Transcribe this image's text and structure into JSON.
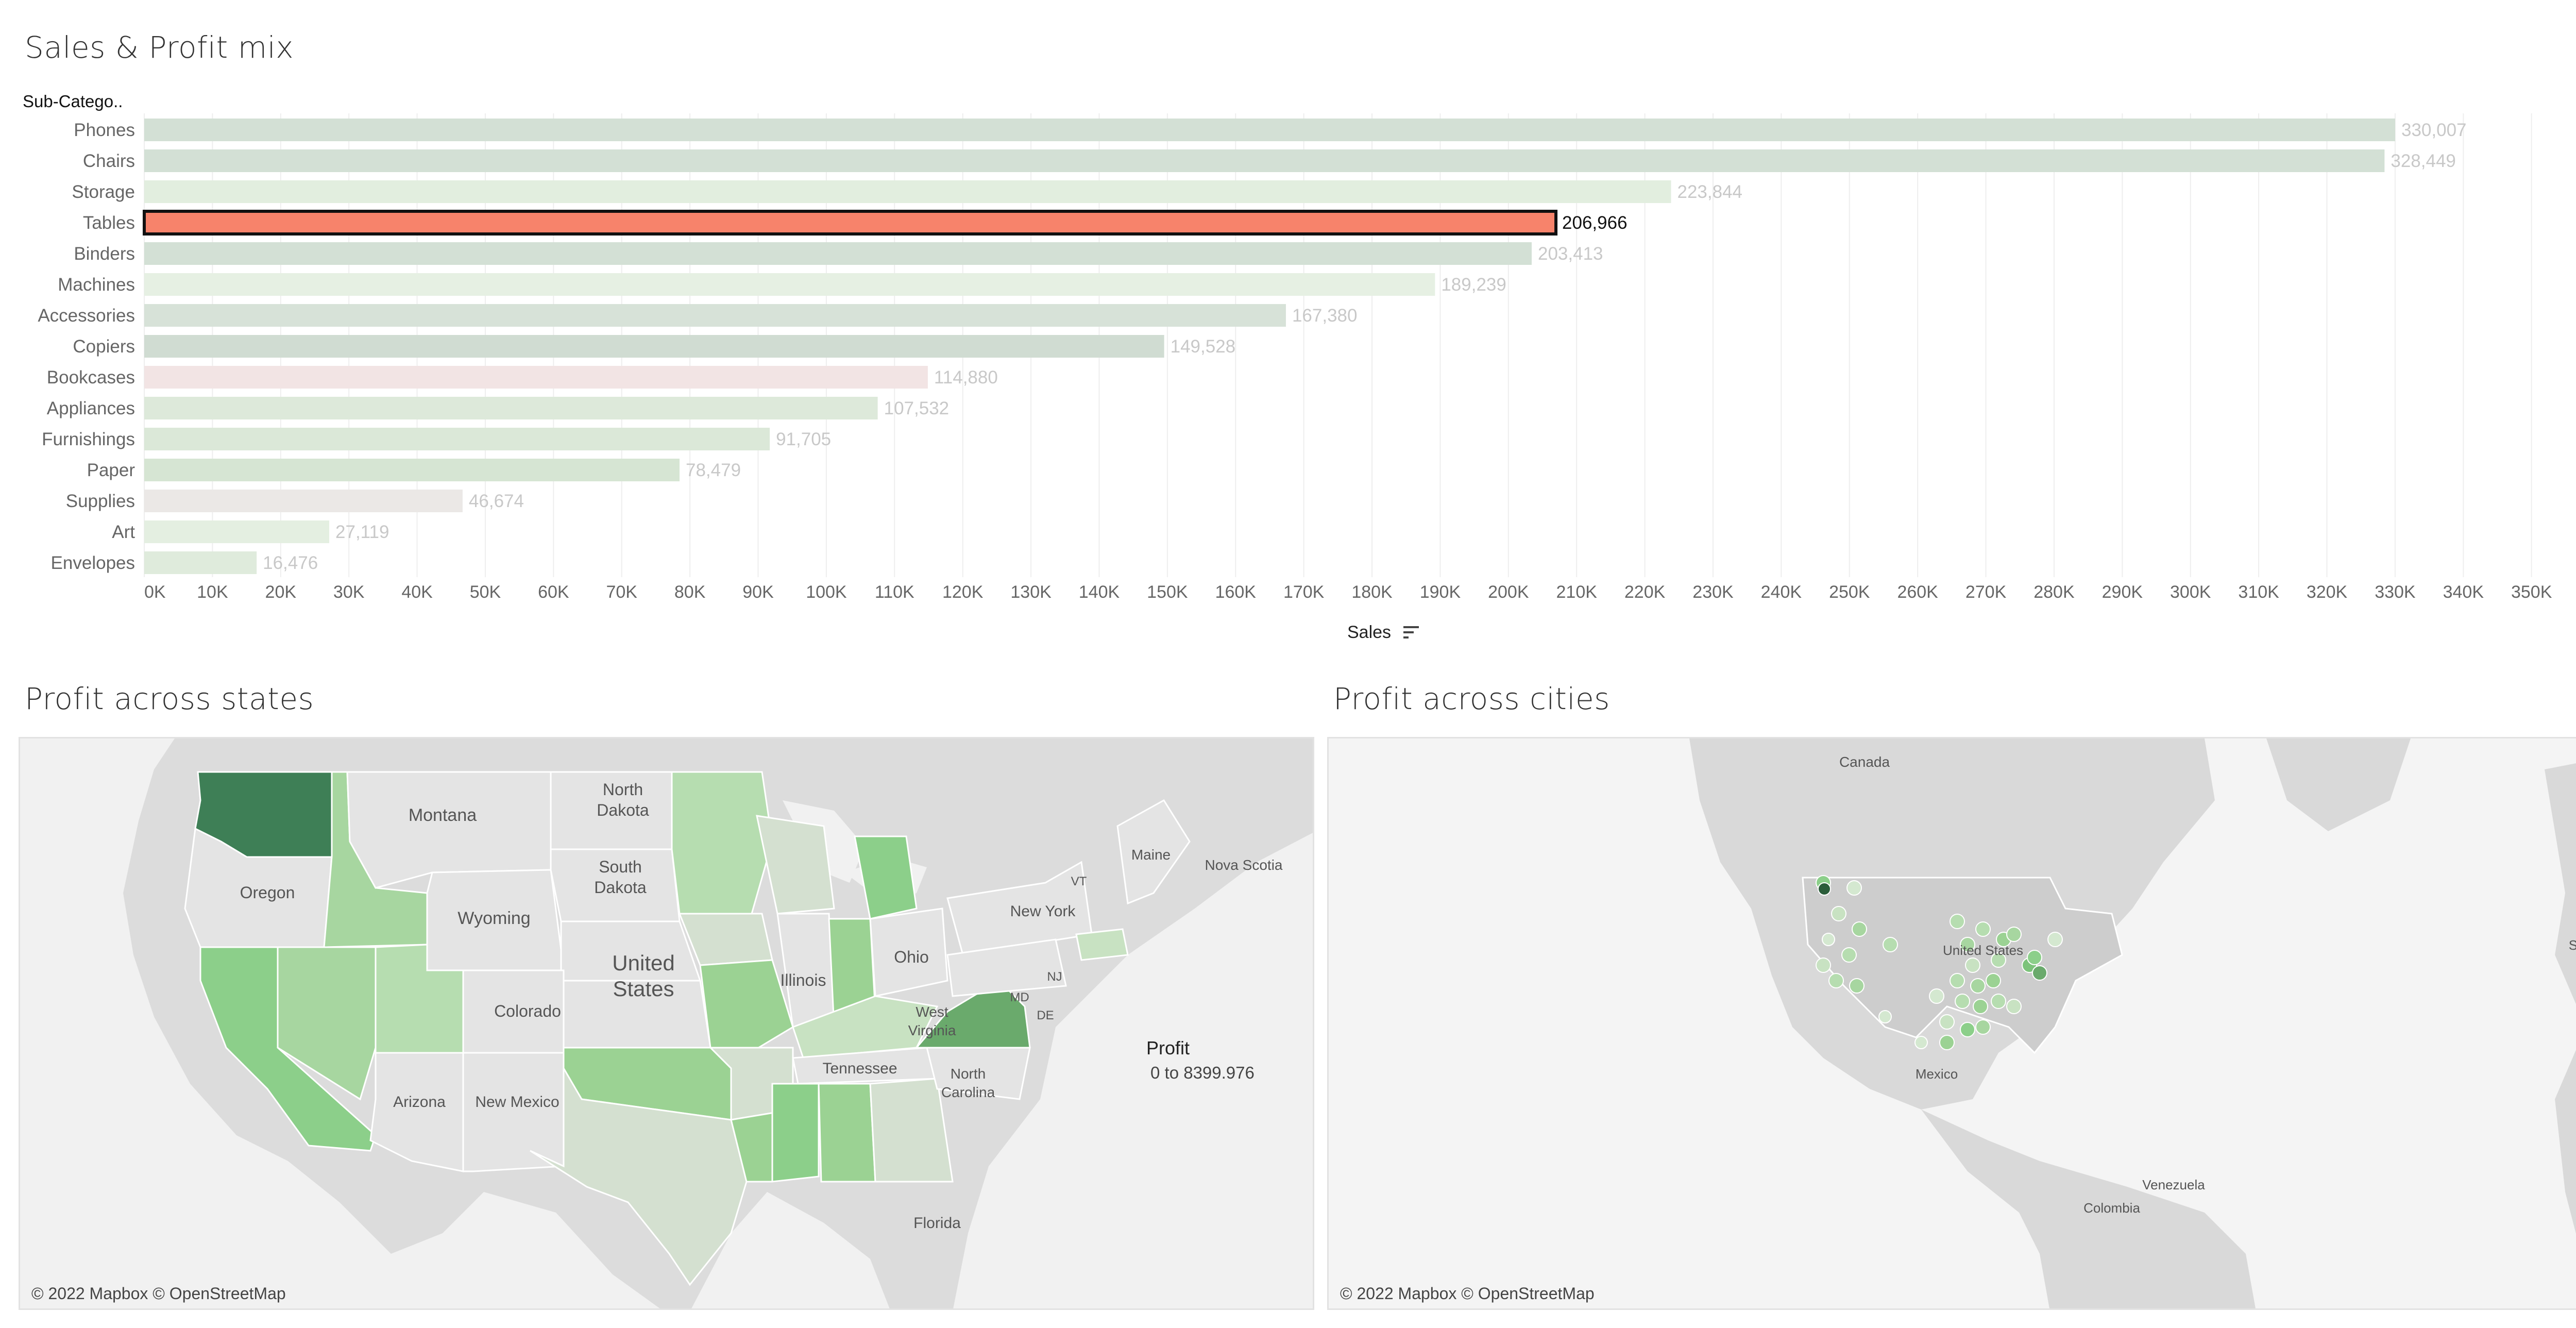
{
  "titles": {
    "bar": "Sales & Profit mix",
    "states": "Profit across states",
    "cities": "Profit across cities"
  },
  "bar_header": "Sub-Catego..",
  "x_axis_title": "Sales",
  "legend": {
    "title": "Profit",
    "range": "0 to 8399.976"
  },
  "attribution": "© 2022 Mapbox © OpenStreetMap",
  "selected_category": "Tables",
  "colors": {
    "selected_bar": "#f7836b",
    "selected_border": "#111111",
    "gridline": "#eeeeee",
    "map_land": "#d9d9d9",
    "map_water": "#f3f3f3",
    "profit_dark": "#3e7f56",
    "profit_mid": "#8ccf8a",
    "profit_light": "#d4e8d0",
    "profit_neutral": "#e6e6e6"
  },
  "chart_data": {
    "type": "bar",
    "orientation": "horizontal",
    "title": "Sales & Profit mix",
    "xlabel": "Sales",
    "ylabel": "Sub-Catego..",
    "xlim": [
      0,
      350000
    ],
    "x_ticks": [
      "0K",
      "10K",
      "20K",
      "30K",
      "40K",
      "50K",
      "60K",
      "70K",
      "80K",
      "90K",
      "100K",
      "110K",
      "120K",
      "130K",
      "140K",
      "150K",
      "160K",
      "170K",
      "180K",
      "190K",
      "200K",
      "210K",
      "220K",
      "230K",
      "240K",
      "250K",
      "260K",
      "270K",
      "280K",
      "290K",
      "300K",
      "310K",
      "320K",
      "330K",
      "340K",
      "350K"
    ],
    "grid": true,
    "categories": [
      "Phones",
      "Chairs",
      "Storage",
      "Tables",
      "Binders",
      "Machines",
      "Accessories",
      "Copiers",
      "Bookcases",
      "Appliances",
      "Furnishings",
      "Paper",
      "Supplies",
      "Art",
      "Envelopes"
    ],
    "values": [
      330007,
      328449,
      223844,
      206966,
      203413,
      189239,
      167380,
      149528,
      114880,
      107532,
      91705,
      78479,
      46674,
      27119,
      16476
    ],
    "value_labels": [
      "330,007",
      "328,449",
      "223,844",
      "206,966",
      "203,413",
      "189,239",
      "167,380",
      "149,528",
      "114,880",
      "107,532",
      "91,705",
      "78,479",
      "46,674",
      "27,119",
      "16,476"
    ],
    "bar_colors": [
      "#d3e0d5",
      "#d3e0d5",
      "#e2eedf",
      "#f7836b",
      "#d3e0d5",
      "#e6f0e3",
      "#d7e2d8",
      "#d0dcd2",
      "#f2e4e4",
      "#dde9da",
      "#dbe8d8",
      "#d6e5d3",
      "#ebe8e6",
      "#e4efe1",
      "#dfebdc"
    ]
  },
  "states_map": {
    "labels": [
      "Montana",
      "North Dakota",
      "South Dakota",
      "Oregon",
      "Wyoming",
      "United States",
      "Colorado",
      "Illinois",
      "Ohio",
      "New York",
      "Maine",
      "Nova Scotia",
      "VT",
      "West Virginia",
      "MD",
      "NJ",
      "DE",
      "Tennessee",
      "North Carolina",
      "Arizona",
      "New Mexico",
      "Florida"
    ]
  },
  "cities_map": {
    "labels": [
      "Canada",
      "United States",
      "Mexico",
      "Venezuela",
      "Colombia",
      "Spain"
    ]
  }
}
